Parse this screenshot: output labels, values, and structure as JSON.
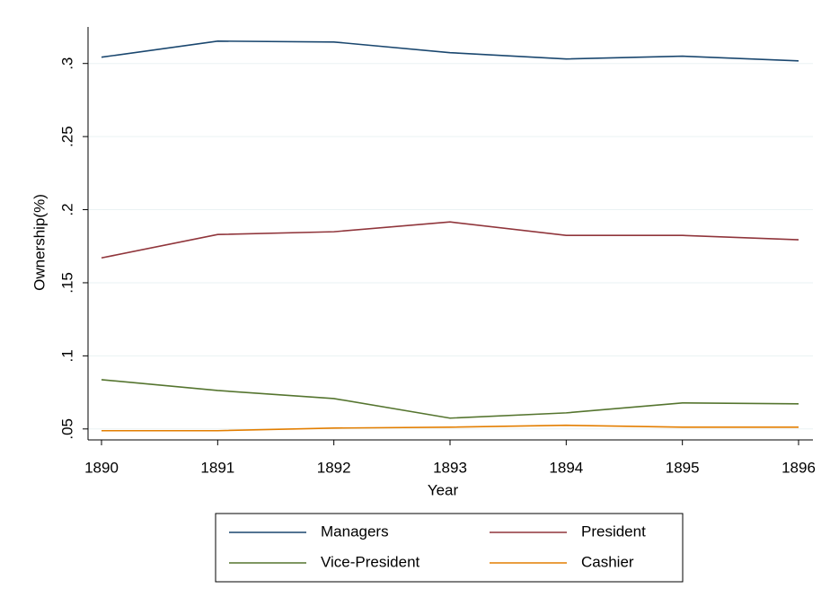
{
  "chart_data": {
    "type": "line",
    "x_label": "Year",
    "y_label": "Ownership(%)",
    "x": [
      1890,
      1891,
      1892,
      1893,
      1894,
      1895,
      1896
    ],
    "xlim": [
      1890,
      1896
    ],
    "xticks": [
      1890,
      1891,
      1892,
      1893,
      1894,
      1895,
      1896
    ],
    "ylim": [
      0.0425,
      0.325
    ],
    "yticks": [
      {
        "value": 0.05,
        "label": ".05"
      },
      {
        "value": 0.1,
        "label": ".1"
      },
      {
        "value": 0.15,
        "label": ".15"
      },
      {
        "value": 0.2,
        "label": ".2"
      },
      {
        "value": 0.25,
        "label": ".25"
      },
      {
        "value": 0.3,
        "label": ".3"
      }
    ],
    "grid": true,
    "series": [
      {
        "name": "Managers",
        "color": "#1a476f",
        "values": [
          0.3043,
          0.3153,
          0.3147,
          0.3074,
          0.3031,
          0.305,
          0.3018
        ]
      },
      {
        "name": "President",
        "color": "#90353b",
        "values": [
          0.167,
          0.183,
          0.1849,
          0.1916,
          0.1824,
          0.1824,
          0.1794
        ]
      },
      {
        "name": "Vice-President",
        "color": "#55752f",
        "values": [
          0.0837,
          0.0763,
          0.0708,
          0.0574,
          0.061,
          0.0678,
          0.0672
        ]
      },
      {
        "name": "Cashier",
        "color": "#e37e00",
        "values": [
          0.0488,
          0.0488,
          0.0506,
          0.0512,
          0.0525,
          0.0512,
          0.0512
        ]
      }
    ]
  }
}
